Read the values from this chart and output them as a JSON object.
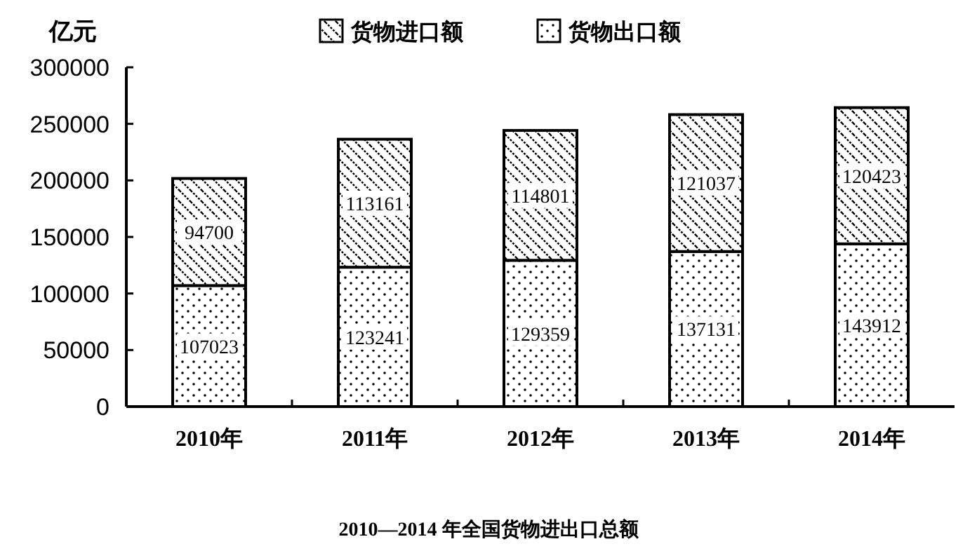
{
  "chart_data": {
    "type": "bar",
    "stacked": true,
    "title": "2010—2014 年全国货物进出口总额",
    "ylabel": "亿元",
    "categories": [
      "2010年",
      "2011年",
      "2012年",
      "2013年",
      "2014年"
    ],
    "series": [
      {
        "name": "货物出口额",
        "color": "#000000",
        "values": [
          107023,
          123241,
          129359,
          137131,
          143912
        ]
      },
      {
        "name": "货物进口额",
        "color": "#000000",
        "values": [
          94700,
          113161,
          114801,
          121037,
          120423
        ]
      }
    ],
    "ylim": [
      0,
      300000
    ],
    "yticks": [
      0,
      50000,
      100000,
      150000,
      200000,
      250000,
      300000
    ],
    "data_labels": true,
    "legend": "top",
    "grid": false
  }
}
